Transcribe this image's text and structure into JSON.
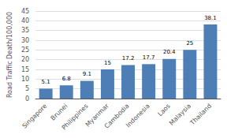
{
  "chart_data": {
    "type": "bar",
    "categories": [
      "Singapore",
      "Brunei",
      "Philippines",
      "Myanmar",
      "Cambodia",
      "Indonesia",
      "Laos",
      "Malaysia",
      "Thailand"
    ],
    "values": [
      5.1,
      6.8,
      9.1,
      15,
      17.2,
      17.7,
      20.4,
      25,
      38.1
    ],
    "color": "#4d7eb5",
    "ylabel": "Road Traffic Death/100,000",
    "ylim": [
      0,
      45
    ],
    "yticks": [
      0,
      5,
      10,
      15,
      20,
      25,
      30,
      35,
      40,
      45
    ],
    "grid": true,
    "data_labels": true
  }
}
